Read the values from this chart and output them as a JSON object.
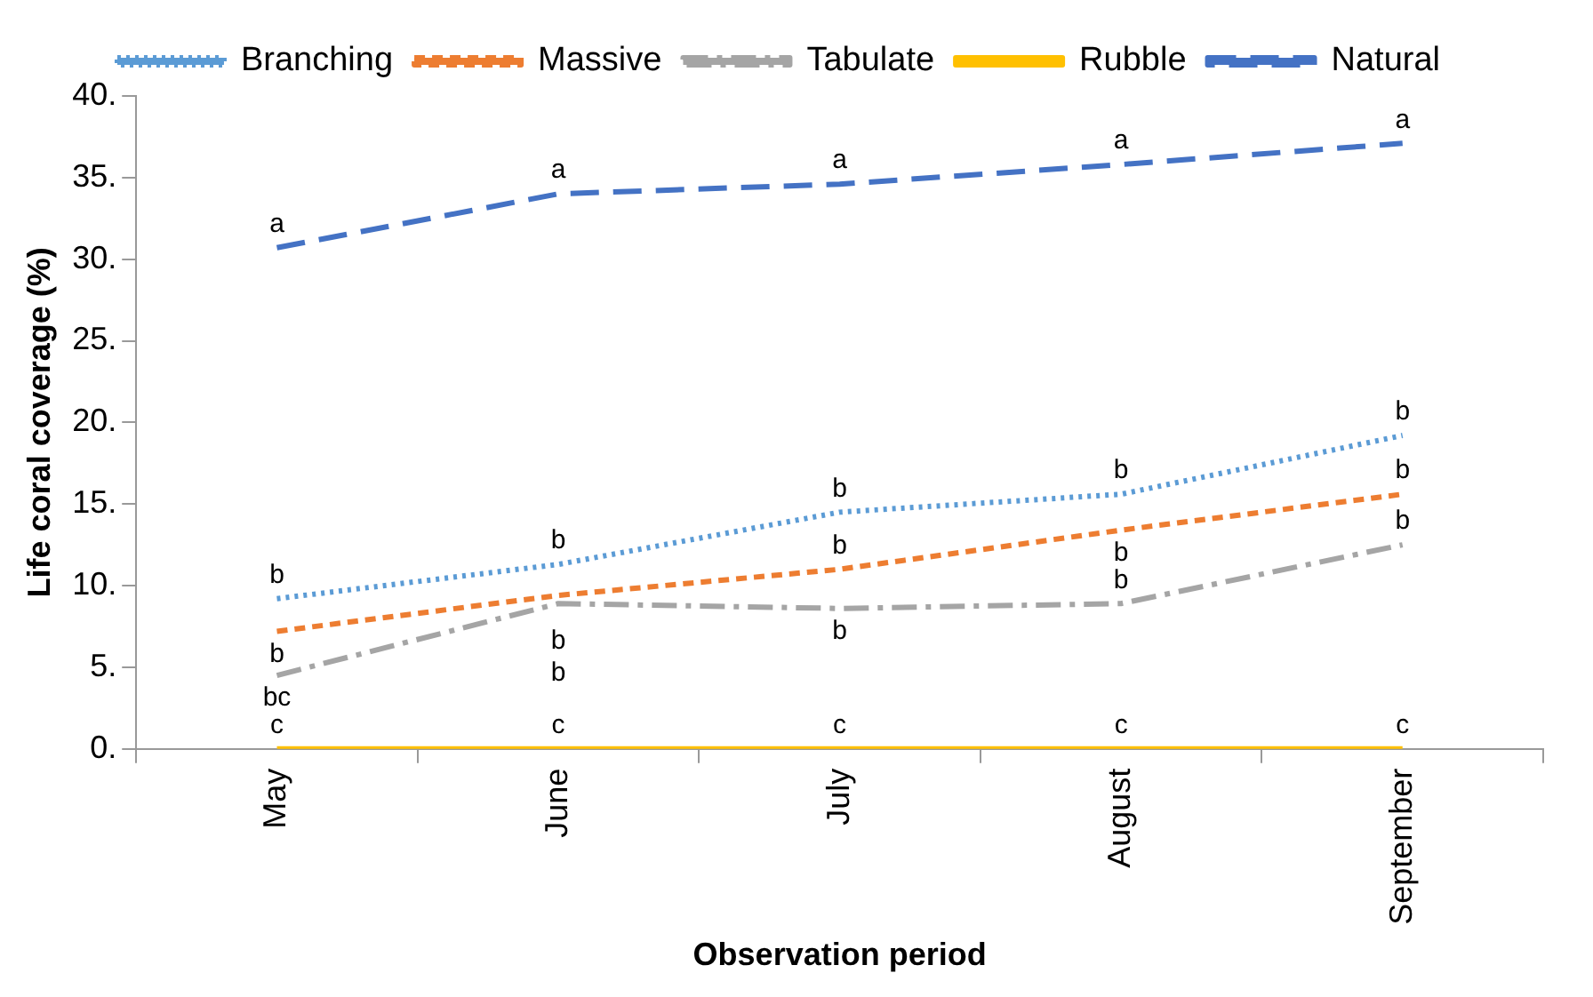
{
  "chart_data": {
    "type": "line",
    "xlabel": "Observation period",
    "ylabel": "Life coral coverage (%)",
    "categories": [
      "May",
      "June",
      "July",
      "August",
      "September"
    ],
    "series": [
      {
        "name": "Branching",
        "color": "#5b9bd5",
        "line_style": "dotted",
        "values": [
          9.2,
          11.3,
          14.5,
          15.6,
          19.2
        ]
      },
      {
        "name": "Massive",
        "color": "#ed7d31",
        "line_style": "dashed",
        "values": [
          7.2,
          9.4,
          11.0,
          13.4,
          15.6
        ]
      },
      {
        "name": "Tabulate",
        "color": "#a5a5a5",
        "line_style": "dashdot",
        "values": [
          4.5,
          8.9,
          8.6,
          8.9,
          12.5
        ]
      },
      {
        "name": "Rubble",
        "color": "#ffc000",
        "line_style": "solid",
        "values": [
          0,
          0,
          0,
          0,
          0
        ]
      },
      {
        "name": "Natural",
        "color": "#4472c4",
        "line_style": "longdash",
        "values": [
          30.7,
          34.0,
          34.6,
          35.8,
          37.1
        ]
      }
    ],
    "ylim": [
      0,
      40
    ],
    "yticks": [
      {
        "value": 0,
        "label": "0."
      },
      {
        "value": 5,
        "label": "5."
      },
      {
        "value": 10,
        "label": "10."
      },
      {
        "value": 15,
        "label": "15."
      },
      {
        "value": 20,
        "label": "20."
      },
      {
        "value": 25,
        "label": "25."
      },
      {
        "value": 30,
        "label": "30."
      },
      {
        "value": 35,
        "label": "35."
      },
      {
        "value": 40,
        "label": "40."
      }
    ],
    "grid": false,
    "legend": "top",
    "marker": "none",
    "annotations": [
      {
        "text": "a",
        "x": "May",
        "y": 30.7
      },
      {
        "text": "a",
        "x": "June",
        "y": 34.0
      },
      {
        "text": "a",
        "x": "July",
        "y": 34.6
      },
      {
        "text": "a",
        "x": "August",
        "y": 35.8
      },
      {
        "text": "a",
        "x": "September",
        "y": 37.1
      },
      {
        "text": "b",
        "x": "May",
        "y": 9.2
      },
      {
        "text": "b",
        "x": "June",
        "y": 11.3
      },
      {
        "text": "b",
        "x": "July",
        "y": 14.5
      },
      {
        "text": "b",
        "x": "August",
        "y": 15.6
      },
      {
        "text": "b",
        "x": "September",
        "y": 19.2
      },
      {
        "text": "b",
        "x": "May",
        "y": 7.2
      },
      {
        "text": "b",
        "x": "June",
        "y": 9.4
      },
      {
        "text": "b",
        "x": "July",
        "y": 11.0
      },
      {
        "text": "b",
        "x": "August",
        "y": 13.4
      },
      {
        "text": "b",
        "x": "September",
        "y": 15.6
      },
      {
        "text": "bc",
        "x": "May",
        "y": 4.5
      },
      {
        "text": "b",
        "x": "June",
        "y": 8.9
      },
      {
        "text": "b",
        "x": "July",
        "y": 8.6
      },
      {
        "text": "b",
        "x": "August",
        "y": 8.9
      },
      {
        "text": "b",
        "x": "September",
        "y": 12.5
      },
      {
        "text": "c",
        "x": "May",
        "y": 0
      },
      {
        "text": "c",
        "x": "June",
        "y": 0
      },
      {
        "text": "c",
        "x": "July",
        "y": 0
      },
      {
        "text": "c",
        "x": "August",
        "y": 0
      },
      {
        "text": "c",
        "x": "September",
        "y": 0
      }
    ]
  }
}
